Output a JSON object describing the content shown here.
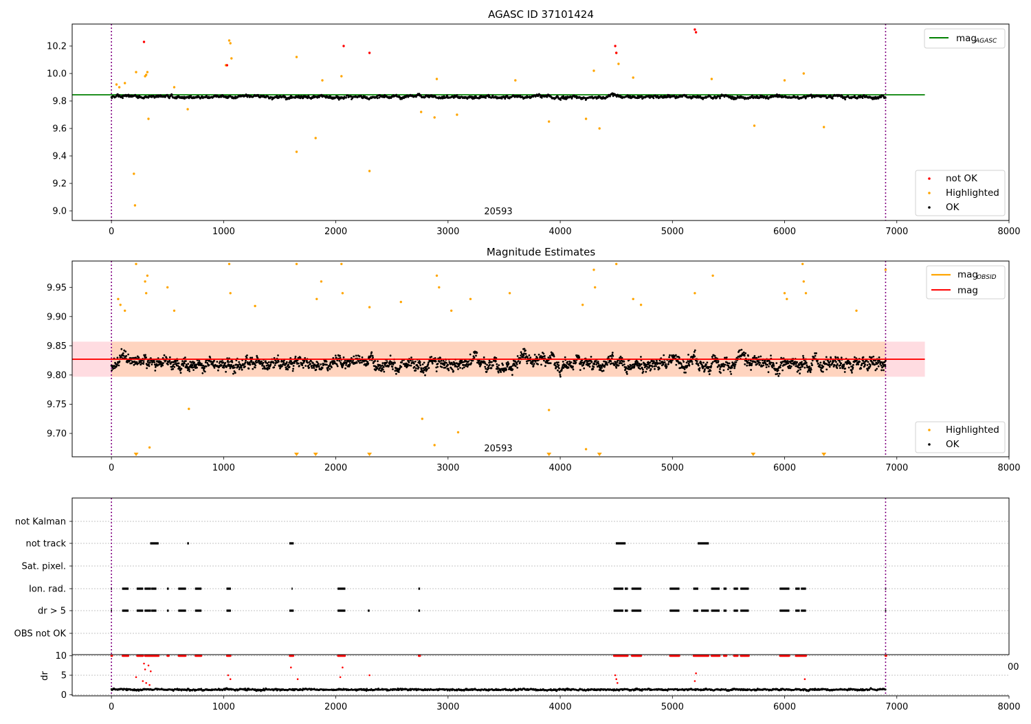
{
  "figure": {
    "title_top": "AGASC ID 37101424",
    "title_mid": "Magnitude Estimates",
    "obsid_label": "20593",
    "x_tick_labels": [
      "0",
      "1000",
      "2000",
      "3000",
      "4000",
      "5000",
      "6000",
      "7000",
      "8000"
    ],
    "colors": {
      "ok": "#000000",
      "highlighted": "#ffa500",
      "not_ok": "#ff0000",
      "mag_agasc": "#008000",
      "mag_obsid": "#ffa500",
      "mag_mean": "#ff0000",
      "obs_boundary": "#800080"
    }
  },
  "chart_data": [
    {
      "type": "scatter",
      "title": "AGASC ID 37101424",
      "xlim": [
        -350,
        8000
      ],
      "ylim": [
        8.93,
        10.36
      ],
      "y_ticks": [
        9.0,
        9.2,
        9.4,
        9.6,
        9.8,
        10.0,
        10.2
      ],
      "y_tick_labels": [
        "9.0",
        "9.2",
        "9.4",
        "9.6",
        "9.8",
        "10.0",
        "10.2"
      ],
      "obs_boundaries": [
        0,
        6900
      ],
      "mag_agasc": {
        "value": 9.845,
        "x_range": [
          -350,
          7250
        ],
        "label": "mag",
        "sub": "AGASC"
      },
      "series_ok": {
        "name": "OK",
        "x_range": [
          0,
          6900
        ],
        "center": 9.83,
        "spread": 0.04
      },
      "highlighted_points": [
        [
          45,
          9.92
        ],
        [
          70,
          9.9
        ],
        [
          120,
          9.93
        ],
        [
          200,
          9.27
        ],
        [
          210,
          9.04
        ],
        [
          220,
          10.01
        ],
        [
          300,
          9.98
        ],
        [
          310,
          9.99
        ],
        [
          320,
          10.01
        ],
        [
          330,
          9.67
        ],
        [
          560,
          9.9
        ],
        [
          680,
          9.74
        ],
        [
          1020,
          10.06
        ],
        [
          1050,
          10.24
        ],
        [
          1060,
          10.22
        ],
        [
          1070,
          10.11
        ],
        [
          1650,
          10.12
        ],
        [
          1650,
          9.43
        ],
        [
          1820,
          9.53
        ],
        [
          1880,
          9.95
        ],
        [
          2050,
          9.98
        ],
        [
          2300,
          9.29
        ],
        [
          2760,
          9.72
        ],
        [
          2880,
          9.68
        ],
        [
          2900,
          9.96
        ],
        [
          3080,
          9.7
        ],
        [
          3600,
          9.95
        ],
        [
          3900,
          9.65
        ],
        [
          4230,
          9.67
        ],
        [
          4300,
          10.02
        ],
        [
          4350,
          9.6
        ],
        [
          4500,
          10.15
        ],
        [
          4520,
          10.07
        ],
        [
          4650,
          9.97
        ],
        [
          5350,
          9.96
        ],
        [
          5730,
          9.62
        ],
        [
          6000,
          9.95
        ],
        [
          6170,
          10.0
        ],
        [
          6350,
          9.61
        ]
      ],
      "not_ok_points": [
        [
          290,
          10.23
        ],
        [
          1030,
          10.06
        ],
        [
          2070,
          10.2
        ],
        [
          2300,
          10.15
        ],
        [
          4490,
          10.2
        ],
        [
          4500,
          10.15
        ],
        [
          5200,
          10.32
        ],
        [
          5210,
          10.3
        ]
      ],
      "legend": [
        "not OK",
        "Highlighted",
        "OK"
      ]
    },
    {
      "type": "scatter",
      "title": "Magnitude Estimates",
      "xlim": [
        -350,
        8000
      ],
      "ylim": [
        9.66,
        9.995
      ],
      "y_ticks": [
        9.7,
        9.75,
        9.8,
        9.85,
        9.9,
        9.95
      ],
      "y_tick_labels": [
        "9.70",
        "9.75",
        "9.80",
        "9.85",
        "9.90",
        "9.95"
      ],
      "obs_boundaries": [
        0,
        6900
      ],
      "mag_mean": {
        "value": 9.827,
        "x_range": [
          -350,
          7250
        ],
        "label": "mag"
      },
      "mag_obsid_band": {
        "low": 9.797,
        "high": 9.857,
        "x_range": [
          -350,
          7250
        ]
      },
      "mag_obsid_label": {
        "label": "mag",
        "sub": "OBSID"
      },
      "series_ok": {
        "name": "OK",
        "x_range": [
          0,
          6900
        ],
        "center": 9.82,
        "spread": 0.03
      },
      "highlighted_points": [
        [
          60,
          9.93
        ],
        [
          80,
          9.92
        ],
        [
          120,
          9.91
        ],
        [
          220,
          9.99
        ],
        [
          300,
          9.96
        ],
        [
          310,
          9.94
        ],
        [
          320,
          9.97
        ],
        [
          340,
          9.676
        ],
        [
          500,
          9.95
        ],
        [
          560,
          9.91
        ],
        [
          690,
          9.742
        ],
        [
          1050,
          9.99
        ],
        [
          1060,
          9.94
        ],
        [
          1280,
          9.918
        ],
        [
          1650,
          9.99
        ],
        [
          1830,
          9.93
        ],
        [
          1870,
          9.96
        ],
        [
          2050,
          9.99
        ],
        [
          2060,
          9.94
        ],
        [
          2300,
          9.916
        ],
        [
          2580,
          9.925
        ],
        [
          2770,
          9.725
        ],
        [
          2880,
          9.68
        ],
        [
          2900,
          9.97
        ],
        [
          2920,
          9.95
        ],
        [
          3030,
          9.91
        ],
        [
          3090,
          9.702
        ],
        [
          3200,
          9.93
        ],
        [
          3550,
          9.94
        ],
        [
          3900,
          9.74
        ],
        [
          4200,
          9.92
        ],
        [
          4230,
          9.673
        ],
        [
          4300,
          9.98
        ],
        [
          4310,
          9.95
        ],
        [
          4500,
          9.99
        ],
        [
          4650,
          9.93
        ],
        [
          4720,
          9.92
        ],
        [
          5200,
          9.94
        ],
        [
          5360,
          9.97
        ],
        [
          6000,
          9.94
        ],
        [
          6020,
          9.93
        ],
        [
          6160,
          9.99
        ],
        [
          6170,
          9.96
        ],
        [
          6190,
          9.94
        ],
        [
          6640,
          9.91
        ],
        [
          6900,
          9.98
        ]
      ],
      "clipped_markers_bottom": [
        220,
        1650,
        1820,
        2300,
        3900,
        4350,
        5720,
        6350
      ],
      "legend": [
        "Highlighted",
        "OK"
      ]
    },
    {
      "type": "scatter",
      "title": "",
      "xlim": [
        -350,
        8000
      ],
      "categories": [
        "not Kalman",
        "not track",
        "Sat. pixel.",
        "Ion. rad.",
        "dr > 5",
        "OBS not OK"
      ],
      "obs_boundaries": [
        0,
        6900
      ],
      "flag_segments": {
        "not track": [
          [
            350,
            420
          ],
          [
            680,
            690
          ],
          [
            1590,
            1620
          ],
          [
            4500,
            4580
          ],
          [
            5230,
            5320
          ]
        ],
        "Ion. rad.": [
          [
            0,
            5
          ],
          [
            100,
            150
          ],
          [
            230,
            280
          ],
          [
            300,
            350
          ],
          [
            360,
            400
          ],
          [
            500,
            510
          ],
          [
            600,
            660
          ],
          [
            750,
            800
          ],
          [
            1030,
            1060
          ],
          [
            1610,
            1615
          ],
          [
            2020,
            2080
          ],
          [
            2740,
            2750
          ],
          [
            4480,
            4560
          ],
          [
            4580,
            4600
          ],
          [
            4640,
            4720
          ],
          [
            4980,
            5060
          ],
          [
            5190,
            5230
          ],
          [
            5350,
            5420
          ],
          [
            5460,
            5480
          ],
          [
            5550,
            5580
          ],
          [
            5610,
            5680
          ],
          [
            5960,
            6040
          ],
          [
            6100,
            6130
          ],
          [
            6150,
            6190
          ],
          [
            6900,
            6905
          ]
        ],
        "dr > 5": [
          [
            0,
            5
          ],
          [
            100,
            150
          ],
          [
            230,
            280
          ],
          [
            300,
            350
          ],
          [
            360,
            400
          ],
          [
            500,
            510
          ],
          [
            600,
            660
          ],
          [
            750,
            800
          ],
          [
            1030,
            1060
          ],
          [
            1590,
            1620
          ],
          [
            2020,
            2080
          ],
          [
            2290,
            2300
          ],
          [
            2740,
            2750
          ],
          [
            4480,
            4560
          ],
          [
            4580,
            4600
          ],
          [
            4640,
            4720
          ],
          [
            4980,
            5060
          ],
          [
            5190,
            5230
          ],
          [
            5260,
            5320
          ],
          [
            5350,
            5420
          ],
          [
            5460,
            5480
          ],
          [
            5550,
            5580
          ],
          [
            5610,
            5680
          ],
          [
            5960,
            6040
          ],
          [
            6100,
            6130
          ],
          [
            6150,
            6190
          ],
          [
            6900,
            6905
          ]
        ]
      }
    },
    {
      "type": "scatter",
      "title": "",
      "ylabel": "dr",
      "xlim": [
        -350,
        8000
      ],
      "ylim": [
        -0.3,
        10.3
      ],
      "y_ticks": [
        0,
        5,
        10
      ],
      "y_tick_labels": [
        "0",
        "5",
        "10"
      ],
      "obs_boundaries": [
        0,
        6900
      ],
      "clip_value": 10,
      "series_ok": {
        "name": "OK",
        "x_range": [
          0,
          6900
        ],
        "center": 1.3,
        "spread": 0.6
      },
      "red_high_ranges": [
        [
          0,
          5
        ],
        [
          100,
          150
        ],
        [
          230,
          280
        ],
        [
          300,
          420
        ],
        [
          500,
          510
        ],
        [
          600,
          660
        ],
        [
          750,
          800
        ],
        [
          1030,
          1060
        ],
        [
          1590,
          1620
        ],
        [
          2020,
          2080
        ],
        [
          2740,
          2750
        ],
        [
          4480,
          4600
        ],
        [
          4640,
          4720
        ],
        [
          4980,
          5060
        ],
        [
          5190,
          5320
        ],
        [
          5350,
          5420
        ],
        [
          5460,
          5480
        ],
        [
          5550,
          5580
        ],
        [
          5610,
          5680
        ],
        [
          5960,
          6040
        ],
        [
          6100,
          6190
        ],
        [
          6900,
          6905
        ]
      ],
      "red_mid_points": [
        [
          220,
          4.5
        ],
        [
          280,
          3.5
        ],
        [
          290,
          8
        ],
        [
          300,
          6.5
        ],
        [
          310,
          3
        ],
        [
          330,
          7.5
        ],
        [
          340,
          2.5
        ],
        [
          350,
          6
        ],
        [
          1040,
          5
        ],
        [
          1060,
          4
        ],
        [
          1600,
          7
        ],
        [
          1660,
          4
        ],
        [
          2040,
          4.5
        ],
        [
          2060,
          7
        ],
        [
          2300,
          5
        ],
        [
          4490,
          5
        ],
        [
          4500,
          4
        ],
        [
          4510,
          3
        ],
        [
          5200,
          3.5
        ],
        [
          5210,
          5.5
        ],
        [
          6180,
          4
        ]
      ]
    }
  ]
}
